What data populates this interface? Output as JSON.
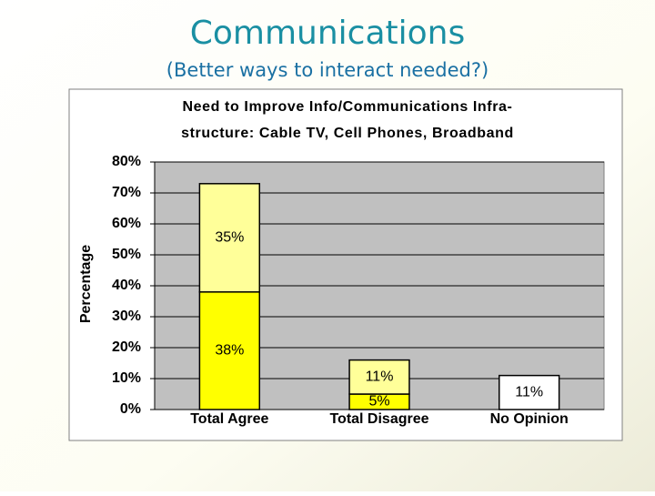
{
  "slide": {
    "title": "Communications",
    "subtitle": "(Better ways to interact needed?)"
  },
  "chart_data": {
    "type": "stacked_bar",
    "title": [
      "Need to Improve Info/Communications Infra-",
      "structure: Cable TV, Cell Phones, Broadband"
    ],
    "y_label": "Percentage",
    "categories": [
      "Total Agree",
      "Total Disagree",
      "No Opinion"
    ],
    "series": [
      {
        "color": "#ffff00",
        "values": [
          38,
          5,
          null
        ],
        "value_labels": [
          "38%",
          "5%",
          null
        ]
      },
      {
        "color": "#ffff99",
        "values": [
          35,
          11,
          null
        ],
        "value_labels": [
          "35%",
          "11%",
          null
        ]
      },
      {
        "color": "#ffffff",
        "values": [
          null,
          null,
          11
        ],
        "value_labels": [
          null,
          null,
          "11%"
        ]
      }
    ],
    "ylim": [
      0,
      80
    ],
    "yticks": [
      {
        "value": 0,
        "label": "0%"
      },
      {
        "value": 10,
        "label": "10%"
      },
      {
        "value": 20,
        "label": "20%"
      },
      {
        "value": 30,
        "label": "30%"
      },
      {
        "value": 40,
        "label": "40%"
      },
      {
        "value": 50,
        "label": "50%"
      },
      {
        "value": 60,
        "label": "60%"
      },
      {
        "value": 70,
        "label": "70%"
      },
      {
        "value": 80,
        "label": "80%"
      }
    ],
    "grid": true,
    "plot_background": "#c0c0c0"
  }
}
